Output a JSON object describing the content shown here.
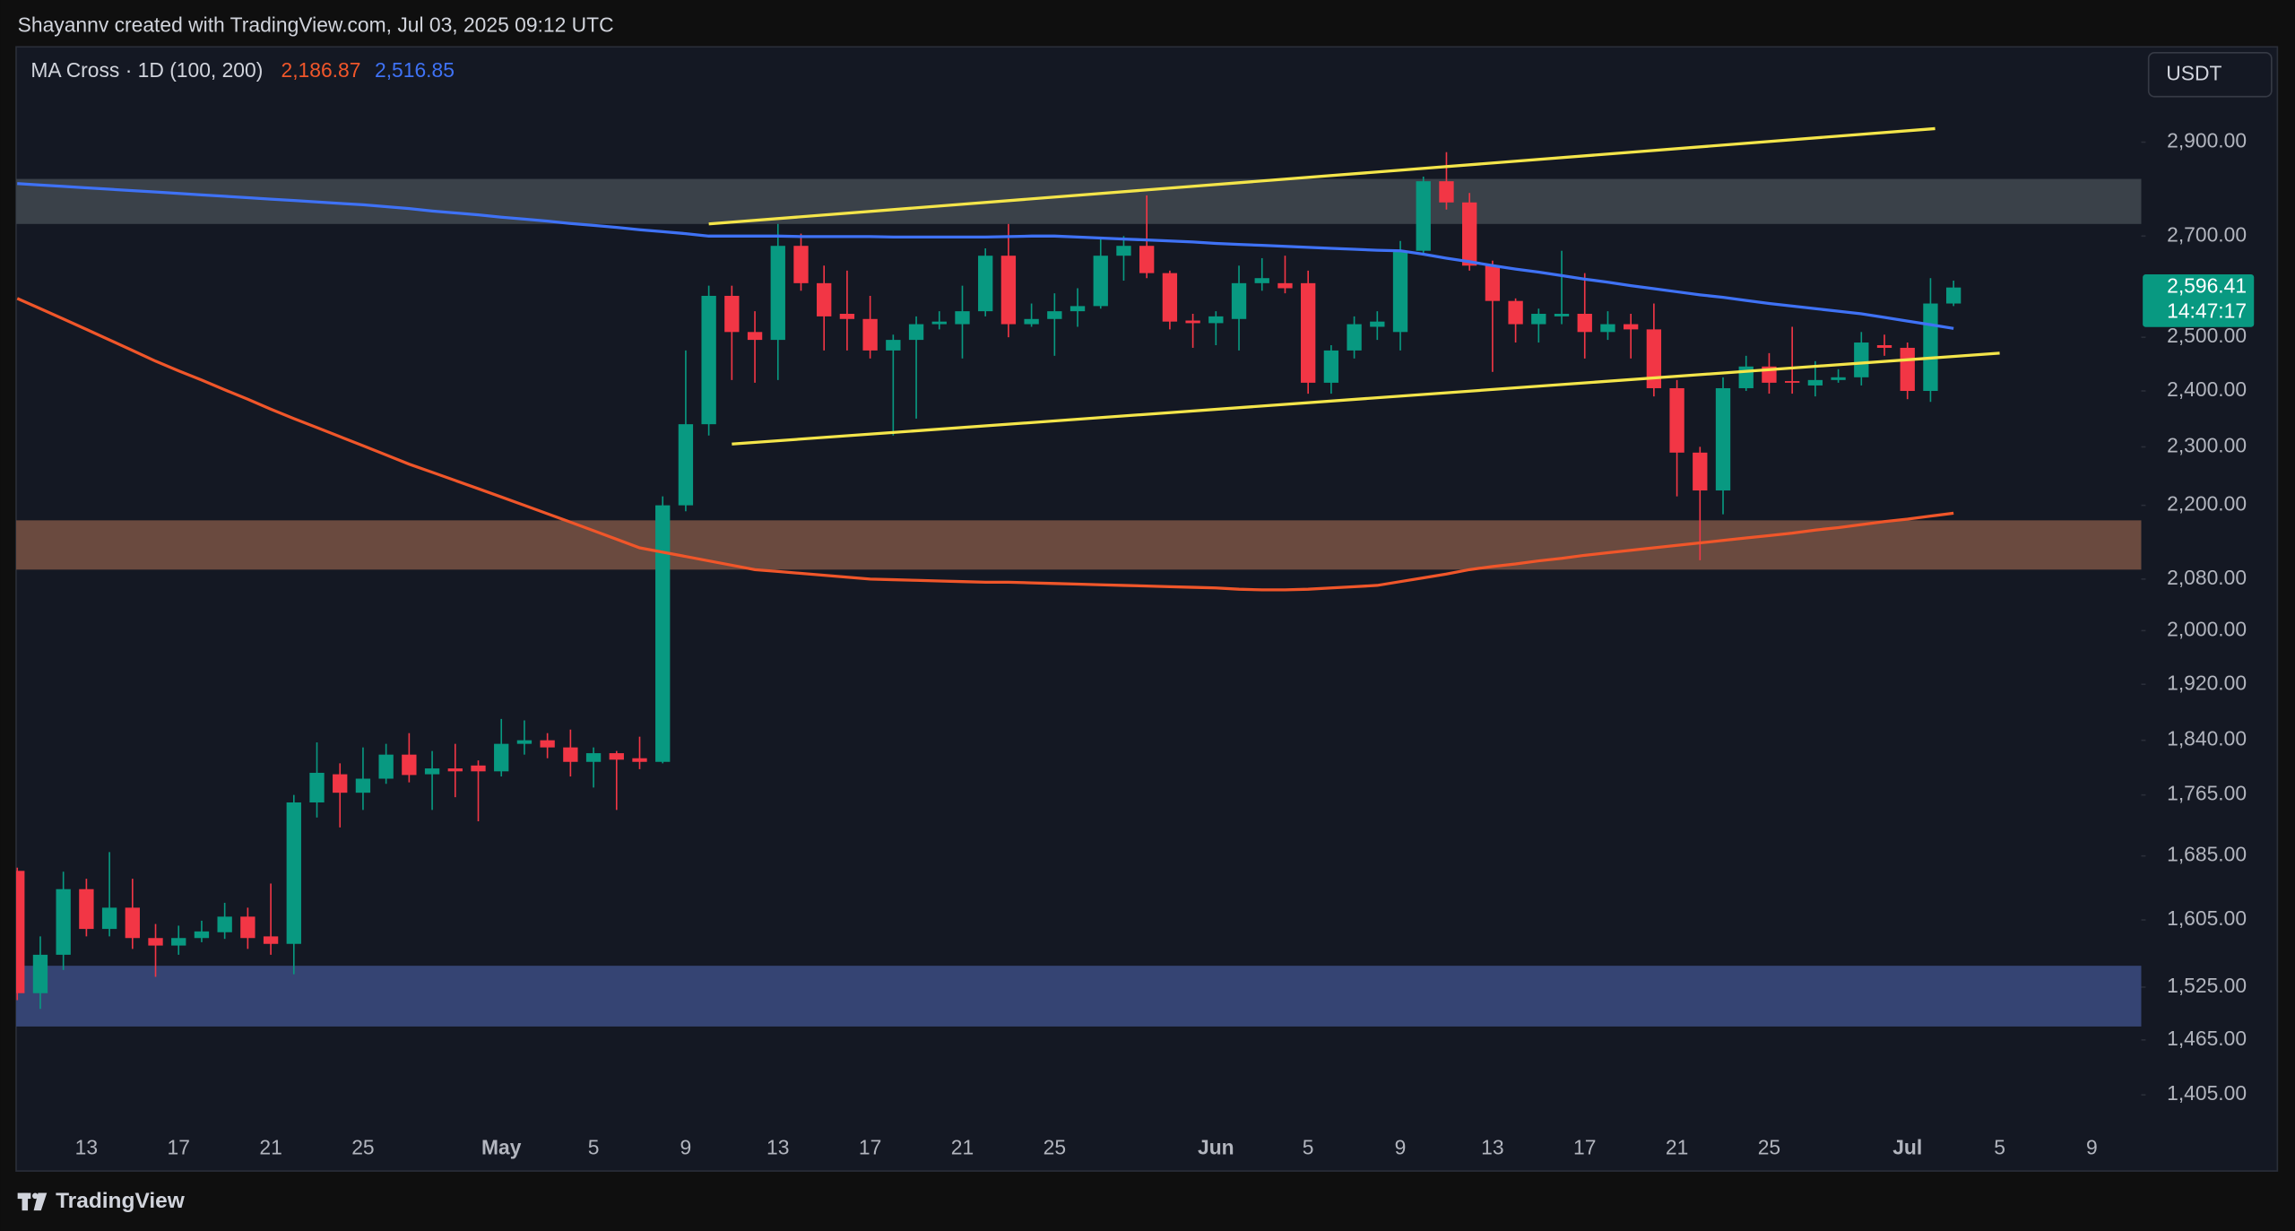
{
  "header": "Shayannv created with TradingView.com, Jul 03, 2025 09:12 UTC",
  "brand": "TradingView",
  "currency_button": "USDT",
  "chart_data": {
    "type": "candlestick",
    "log_scale": true,
    "ylim": [
      1371,
      3118
    ],
    "yticks": [
      {
        "value": 2900,
        "label": "2,900.00"
      },
      {
        "value": 2700,
        "label": "2,700.00"
      },
      {
        "value": 2500,
        "label": "2,500.00"
      },
      {
        "value": 2400,
        "label": "2,400.00"
      },
      {
        "value": 2300,
        "label": "2,300.00"
      },
      {
        "value": 2200,
        "label": "2,200.00"
      },
      {
        "value": 2080,
        "label": "2,080.00"
      },
      {
        "value": 2000,
        "label": "2,000.00"
      },
      {
        "value": 1920,
        "label": "1,920.00"
      },
      {
        "value": 1840,
        "label": "1,840.00"
      },
      {
        "value": 1765,
        "label": "1,765.00"
      },
      {
        "value": 1685,
        "label": "1,685.00"
      },
      {
        "value": 1605,
        "label": "1,605.00"
      },
      {
        "value": 1525,
        "label": "1,525.00"
      },
      {
        "value": 1465,
        "label": "1,465.00"
      },
      {
        "value": 1405,
        "label": "1,405.00"
      }
    ],
    "categories": [
      null,
      null,
      null,
      "13",
      null,
      null,
      null,
      "17",
      null,
      null,
      null,
      "21",
      null,
      null,
      null,
      "25",
      null,
      null,
      null,
      null,
      null,
      "May",
      null,
      null,
      null,
      "5",
      null,
      null,
      null,
      "9",
      null,
      null,
      null,
      "13",
      null,
      null,
      null,
      "17",
      null,
      null,
      null,
      "21",
      null,
      null,
      null,
      "25",
      null,
      null,
      null,
      null,
      null,
      null,
      "Jun",
      null,
      null,
      null,
      "5",
      null,
      null,
      null,
      "9",
      null,
      null,
      null,
      "13",
      null,
      null,
      null,
      "17",
      null,
      null,
      null,
      "21",
      null,
      null,
      null,
      "25",
      null,
      null,
      null,
      null,
      null,
      "Jul",
      null,
      null,
      null,
      "5",
      null,
      null,
      null,
      "9",
      null,
      null
    ],
    "up_color": "#089981",
    "down_color": "#f23645",
    "open": [
      1666,
      1518,
      1563,
      1643,
      1594,
      1620,
      1583,
      1574,
      1583,
      1590,
      1609,
      1585,
      1576,
      1755,
      1793,
      1768,
      1787,
      1820,
      1793,
      1801,
      1805,
      1797,
      1835,
      1840,
      1830,
      1810,
      1822,
      1815,
      1810,
      2200,
      2340,
      2580,
      2510,
      2495,
      2680,
      2605,
      2545,
      2535,
      2475,
      2495,
      2525,
      2525,
      2550,
      2660,
      2525,
      2535,
      2550,
      2560,
      2660,
      2680,
      2625,
      2532,
      2527,
      2535,
      2605,
      2605,
      2605,
      2415,
      2475,
      2520,
      2510,
      2670,
      2815,
      2770,
      2640,
      2570,
      2525,
      2540,
      2545,
      2510,
      2525,
      2515,
      2405,
      2290,
      2225,
      2405,
      2445,
      2418,
      2410,
      2420,
      2425,
      2485,
      2480,
      2400,
      2565,
      null,
      null,
      null,
      null,
      null,
      null,
      null,
      null
    ],
    "high": [
      1670,
      1585,
      1665,
      1656,
      1690,
      1656,
      1600,
      1598,
      1604,
      1626,
      1620,
      1650,
      1765,
      1837,
      1808,
      1830,
      1835,
      1850,
      1825,
      1835,
      1812,
      1870,
      1868,
      1850,
      1855,
      1830,
      1825,
      1845,
      2215,
      2475,
      2600,
      2600,
      2550,
      2725,
      2705,
      2640,
      2630,
      2580,
      2505,
      2540,
      2550,
      2600,
      2675,
      2725,
      2565,
      2585,
      2595,
      2695,
      2700,
      2785,
      2630,
      2545,
      2550,
      2640,
      2655,
      2660,
      2630,
      2485,
      2540,
      2550,
      2690,
      2825,
      2878,
      2790,
      2650,
      2575,
      2555,
      2670,
      2625,
      2550,
      2545,
      2565,
      2420,
      2300,
      2425,
      2465,
      2470,
      2520,
      2455,
      2440,
      2510,
      2505,
      2490,
      2615,
      2610,
      null,
      null,
      null,
      null,
      null,
      null,
      null,
      null
    ],
    "low": [
      1510,
      1500,
      1545,
      1585,
      1585,
      1570,
      1537,
      1563,
      1578,
      1582,
      1570,
      1563,
      1540,
      1735,
      1722,
      1745,
      1780,
      1782,
      1745,
      1762,
      1730,
      1790,
      1820,
      1815,
      1790,
      1775,
      1745,
      1800,
      1808,
      2190,
      2320,
      2420,
      2415,
      2420,
      2590,
      2475,
      2475,
      2460,
      2320,
      2350,
      2515,
      2460,
      2540,
      2500,
      2520,
      2465,
      2520,
      2555,
      2610,
      2615,
      2515,
      2480,
      2485,
      2475,
      2590,
      2585,
      2395,
      2395,
      2460,
      2495,
      2475,
      2665,
      2755,
      2630,
      2435,
      2490,
      2490,
      2525,
      2460,
      2495,
      2460,
      2390,
      2215,
      2110,
      2185,
      2400,
      2395,
      2395,
      2390,
      2415,
      2410,
      2465,
      2385,
      2380,
      2560,
      null,
      null,
      null,
      null,
      null,
      null,
      null,
      null
    ],
    "close": [
      1518,
      1563,
      1643,
      1594,
      1620,
      1583,
      1574,
      1583,
      1591,
      1609,
      1583,
      1576,
      1755,
      1795,
      1768,
      1787,
      1820,
      1792,
      1801,
      1797,
      1797,
      1835,
      1840,
      1830,
      1810,
      1822,
      1813,
      1810,
      2200,
      2340,
      2580,
      2510,
      2495,
      2680,
      2605,
      2540,
      2535,
      2475,
      2495,
      2525,
      2530,
      2550,
      2660,
      2525,
      2535,
      2550,
      2560,
      2660,
      2680,
      2625,
      2530,
      2527,
      2540,
      2605,
      2615,
      2595,
      2415,
      2475,
      2525,
      2530,
      2670,
      2815,
      2770,
      2640,
      2570,
      2525,
      2545,
      2545,
      2510,
      2525,
      2515,
      2405,
      2290,
      2225,
      2405,
      2445,
      2415,
      2415,
      2420,
      2425,
      2490,
      2480,
      2400,
      2565,
      2596.41,
      null,
      null,
      null,
      null,
      null,
      null,
      null,
      null
    ],
    "last_price": {
      "label": "2,596.41",
      "countdown": "14:47:17",
      "color": "#089981"
    },
    "indicator": {
      "name": "MA Cross · 1D (100, 200)",
      "series": [
        {
          "color": "#f0562a",
          "label": "2,186.87",
          "values": [
            2575,
            2555,
            2535,
            2515,
            2495,
            2475,
            2455,
            2437,
            2420,
            2402,
            2385,
            2367,
            2350,
            2334,
            2318,
            2302,
            2286,
            2270,
            2256,
            2242,
            2228,
            2214,
            2200,
            2186,
            2172,
            2158,
            2144,
            2130,
            2123,
            2116,
            2109,
            2102,
            2095,
            2092,
            2089,
            2086,
            2083,
            2080,
            2079,
            2078,
            2077,
            2076,
            2075,
            2075,
            2074,
            2073,
            2072,
            2071,
            2070,
            2069,
            2068,
            2067,
            2066,
            2064,
            2063,
            2063,
            2064,
            2066,
            2068,
            2070,
            2076,
            2082,
            2088,
            2095,
            2100,
            2104,
            2109,
            2113,
            2118,
            2122,
            2126,
            2130,
            2134,
            2138,
            2142,
            2146,
            2150,
            2154,
            2159,
            2163,
            2168,
            2173,
            2177,
            2182,
            2186.87,
            null,
            null,
            null,
            null,
            null,
            null,
            null,
            null
          ]
        },
        {
          "color": "#3f72f5",
          "label": "2,516.85",
          "values": [
            2810,
            2807,
            2804,
            2801,
            2798,
            2795,
            2792,
            2789,
            2786,
            2783,
            2780,
            2777,
            2774,
            2771,
            2768,
            2765,
            2761,
            2757,
            2752,
            2748,
            2744,
            2739,
            2735,
            2731,
            2726,
            2722,
            2718,
            2713,
            2709,
            2705,
            2700,
            2700,
            2700,
            2700,
            2699,
            2699,
            2699,
            2699,
            2698,
            2698,
            2698,
            2698,
            2698,
            2699,
            2700,
            2700,
            2698,
            2696,
            2694,
            2692,
            2690,
            2688,
            2685,
            2683,
            2681,
            2679,
            2677,
            2675,
            2673,
            2671,
            2670,
            2663,
            2655,
            2648,
            2640,
            2633,
            2627,
            2620,
            2613,
            2607,
            2600,
            2594,
            2588,
            2582,
            2577,
            2571,
            2565,
            2560,
            2555,
            2550,
            2545,
            2538,
            2531,
            2524,
            2516.85,
            null,
            null,
            null,
            null,
            null,
            null,
            null,
            null
          ]
        }
      ]
    },
    "zones": [
      {
        "low": 2725,
        "high": 2820,
        "color": "#3a4149"
      },
      {
        "low": 2095,
        "high": 2175,
        "color": "#6a4a3f"
      },
      {
        "low": 1480,
        "high": 1550,
        "color": "#354473"
      }
    ],
    "trendlines": [
      {
        "x": [
          30,
          83.2
        ],
        "y": [
          2725,
          2930
        ],
        "color": "#f4e54a"
      },
      {
        "x": [
          31,
          86
        ],
        "y": [
          2305,
          2470
        ],
        "color": "#f4e54a"
      }
    ]
  }
}
